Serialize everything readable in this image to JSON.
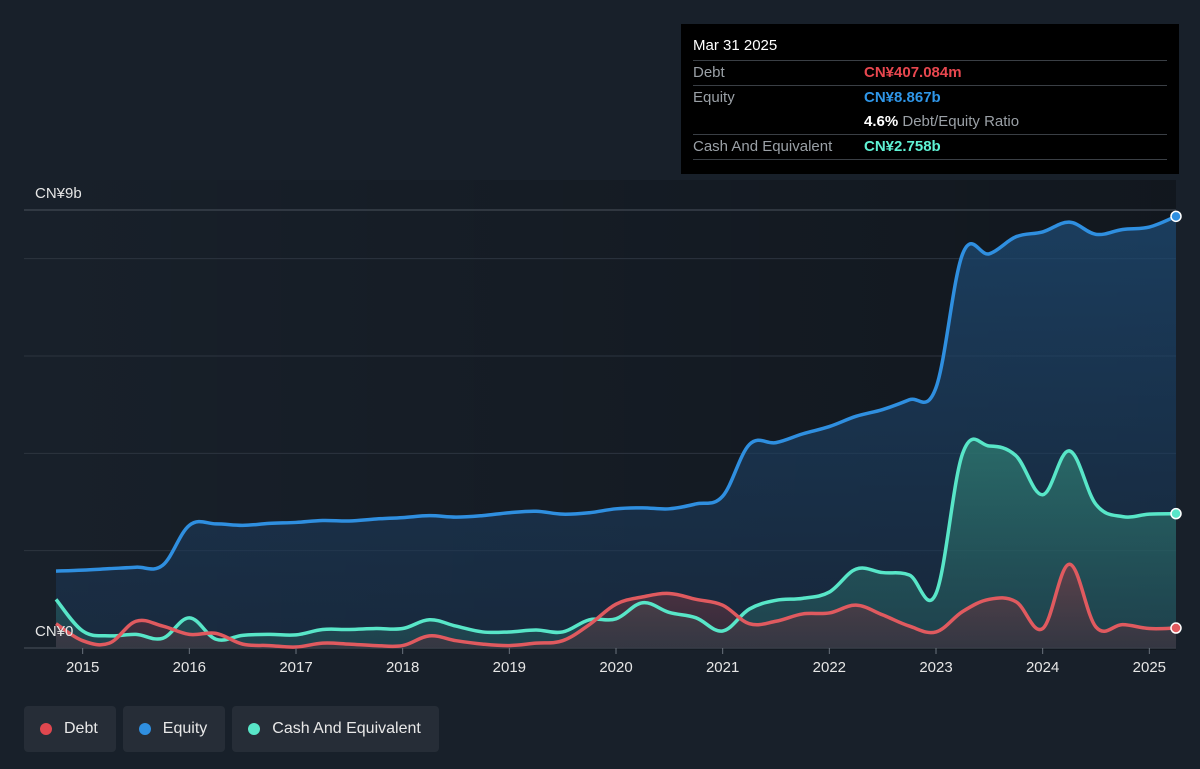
{
  "chart_data": {
    "type": "area",
    "title": "",
    "y_label_top": "CN¥9b",
    "y_label_bottom": "CN¥0",
    "ylim": [
      0,
      9
    ],
    "xlim": [
      2014.45,
      2025.25
    ],
    "grid": true,
    "x_ticks": [
      "2015",
      "2016",
      "2017",
      "2018",
      "2019",
      "2020",
      "2021",
      "2022",
      "2023",
      "2024",
      "2025"
    ],
    "series": [
      {
        "name": "Equity",
        "color": "#2f8fe0",
        "points": [
          [
            2014.75,
            1.58
          ],
          [
            2015.0,
            1.6
          ],
          [
            2015.25,
            1.63
          ],
          [
            2015.5,
            1.66
          ],
          [
            2015.75,
            1.7
          ],
          [
            2016.0,
            2.52
          ],
          [
            2016.25,
            2.55
          ],
          [
            2016.5,
            2.52
          ],
          [
            2016.75,
            2.56
          ],
          [
            2017.0,
            2.58
          ],
          [
            2017.25,
            2.62
          ],
          [
            2017.5,
            2.61
          ],
          [
            2017.75,
            2.65
          ],
          [
            2018.0,
            2.68
          ],
          [
            2018.25,
            2.72
          ],
          [
            2018.5,
            2.69
          ],
          [
            2018.75,
            2.72
          ],
          [
            2019.0,
            2.78
          ],
          [
            2019.25,
            2.81
          ],
          [
            2019.5,
            2.75
          ],
          [
            2019.75,
            2.78
          ],
          [
            2020.0,
            2.86
          ],
          [
            2020.25,
            2.88
          ],
          [
            2020.5,
            2.86
          ],
          [
            2020.75,
            2.96
          ],
          [
            2021.0,
            3.12
          ],
          [
            2021.25,
            4.18
          ],
          [
            2021.5,
            4.22
          ],
          [
            2021.75,
            4.4
          ],
          [
            2022.0,
            4.55
          ],
          [
            2022.25,
            4.76
          ],
          [
            2022.5,
            4.9
          ],
          [
            2022.75,
            5.1
          ],
          [
            2023.0,
            5.35
          ],
          [
            2023.25,
            8.1
          ],
          [
            2023.5,
            8.1
          ],
          [
            2023.75,
            8.45
          ],
          [
            2024.0,
            8.55
          ],
          [
            2024.25,
            8.75
          ],
          [
            2024.5,
            8.5
          ],
          [
            2024.75,
            8.6
          ],
          [
            2025.0,
            8.65
          ],
          [
            2025.25,
            8.87
          ]
        ]
      },
      {
        "name": "Cash And Equivalent",
        "color": "#58e6c8",
        "points": [
          [
            2014.75,
            1.0
          ],
          [
            2015.0,
            0.35
          ],
          [
            2015.25,
            0.25
          ],
          [
            2015.5,
            0.28
          ],
          [
            2015.75,
            0.2
          ],
          [
            2016.0,
            0.62
          ],
          [
            2016.25,
            0.18
          ],
          [
            2016.5,
            0.26
          ],
          [
            2016.75,
            0.28
          ],
          [
            2017.0,
            0.27
          ],
          [
            2017.25,
            0.38
          ],
          [
            2017.5,
            0.38
          ],
          [
            2017.75,
            0.4
          ],
          [
            2018.0,
            0.4
          ],
          [
            2018.25,
            0.58
          ],
          [
            2018.5,
            0.45
          ],
          [
            2018.75,
            0.33
          ],
          [
            2019.0,
            0.33
          ],
          [
            2019.25,
            0.37
          ],
          [
            2019.5,
            0.33
          ],
          [
            2019.75,
            0.58
          ],
          [
            2020.0,
            0.6
          ],
          [
            2020.25,
            0.93
          ],
          [
            2020.5,
            0.73
          ],
          [
            2020.75,
            0.62
          ],
          [
            2021.0,
            0.35
          ],
          [
            2021.25,
            0.8
          ],
          [
            2021.5,
            0.98
          ],
          [
            2021.75,
            1.02
          ],
          [
            2022.0,
            1.15
          ],
          [
            2022.25,
            1.62
          ],
          [
            2022.5,
            1.55
          ],
          [
            2022.75,
            1.5
          ],
          [
            2023.0,
            1.12
          ],
          [
            2023.25,
            4.0
          ],
          [
            2023.5,
            4.15
          ],
          [
            2023.75,
            3.95
          ],
          [
            2024.0,
            3.15
          ],
          [
            2024.25,
            4.05
          ],
          [
            2024.5,
            2.95
          ],
          [
            2024.75,
            2.7
          ],
          [
            2025.0,
            2.75
          ],
          [
            2025.25,
            2.76
          ]
        ]
      },
      {
        "name": "Debt",
        "color": "#e05a5f",
        "points": [
          [
            2014.75,
            0.5
          ],
          [
            2015.0,
            0.15
          ],
          [
            2015.25,
            0.1
          ],
          [
            2015.5,
            0.55
          ],
          [
            2015.75,
            0.45
          ],
          [
            2016.0,
            0.28
          ],
          [
            2016.25,
            0.3
          ],
          [
            2016.5,
            0.08
          ],
          [
            2016.75,
            0.05
          ],
          [
            2017.0,
            0.02
          ],
          [
            2017.25,
            0.1
          ],
          [
            2017.5,
            0.08
          ],
          [
            2017.75,
            0.05
          ],
          [
            2018.0,
            0.05
          ],
          [
            2018.25,
            0.25
          ],
          [
            2018.5,
            0.15
          ],
          [
            2018.75,
            0.08
          ],
          [
            2019.0,
            0.05
          ],
          [
            2019.25,
            0.1
          ],
          [
            2019.5,
            0.15
          ],
          [
            2019.75,
            0.48
          ],
          [
            2020.0,
            0.9
          ],
          [
            2020.25,
            1.05
          ],
          [
            2020.5,
            1.12
          ],
          [
            2020.75,
            1.0
          ],
          [
            2021.0,
            0.88
          ],
          [
            2021.25,
            0.5
          ],
          [
            2021.5,
            0.55
          ],
          [
            2021.75,
            0.7
          ],
          [
            2022.0,
            0.72
          ],
          [
            2022.25,
            0.88
          ],
          [
            2022.5,
            0.68
          ],
          [
            2022.75,
            0.45
          ],
          [
            2023.0,
            0.33
          ],
          [
            2023.25,
            0.75
          ],
          [
            2023.5,
            1.0
          ],
          [
            2023.75,
            0.95
          ],
          [
            2024.0,
            0.4
          ],
          [
            2024.25,
            1.72
          ],
          [
            2024.5,
            0.43
          ],
          [
            2024.75,
            0.48
          ],
          [
            2025.0,
            0.4
          ],
          [
            2025.25,
            0.41
          ]
        ]
      }
    ]
  },
  "tooltip": {
    "date": "Mar 31 2025",
    "rows": [
      {
        "label": "Debt",
        "value": "CN¥407.084m",
        "color": "#e8474f"
      },
      {
        "label": "Equity",
        "value": "CN¥8.867b",
        "color": "#2f96e8"
      },
      {
        "label": "Cash And Equivalent",
        "value": "CN¥2.758b",
        "color": "#5ff2d4"
      }
    ],
    "ratio_value": "4.6%",
    "ratio_label": "Debt/Equity Ratio"
  },
  "legend": [
    {
      "label": "Debt",
      "color": "#e0474f"
    },
    {
      "label": "Equity",
      "color": "#2f8fe0"
    },
    {
      "label": "Cash And Equivalent",
      "color": "#58e6c8"
    }
  ]
}
